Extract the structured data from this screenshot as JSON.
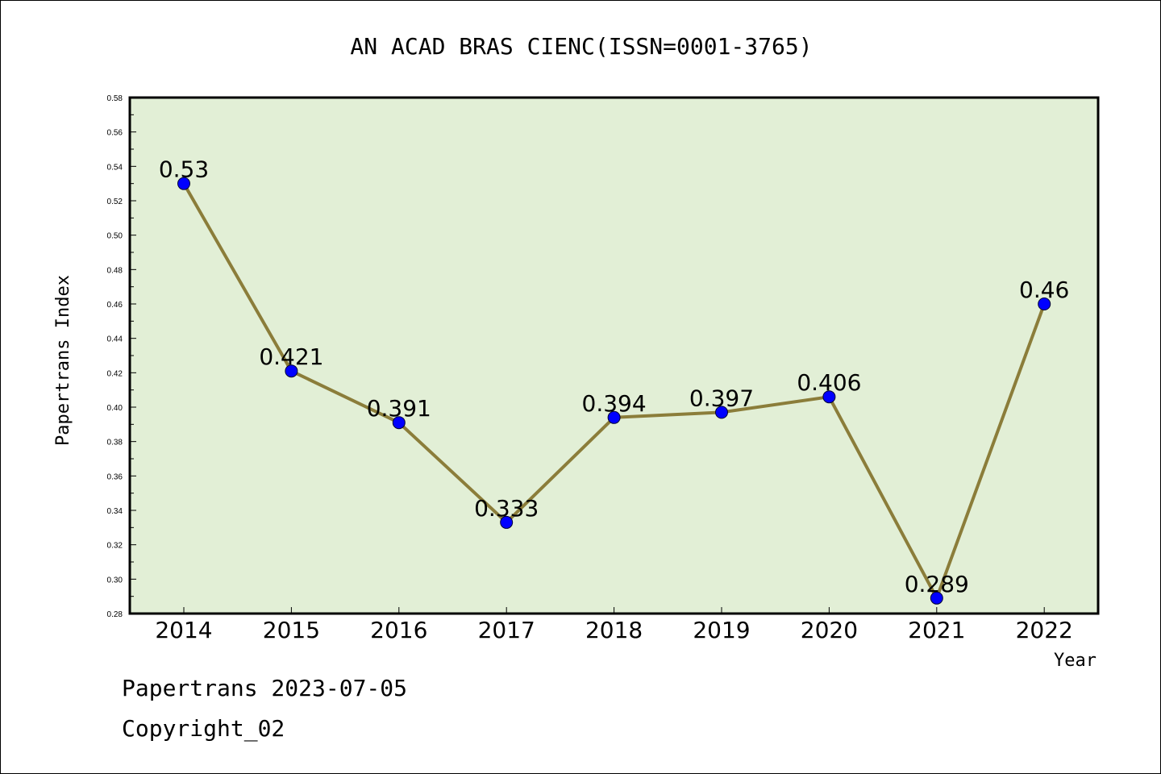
{
  "chart_data": {
    "type": "line",
    "title": "AN ACAD BRAS CIENC(ISSN=0001-3765)",
    "xlabel": "Year",
    "ylabel": "Papertrans Index",
    "categories": [
      "2014",
      "2015",
      "2016",
      "2017",
      "2018",
      "2019",
      "2020",
      "2021",
      "2022"
    ],
    "series": [
      {
        "values": [
          0.53,
          0.421,
          0.391,
          0.333,
          0.394,
          0.397,
          0.406,
          0.289,
          0.46
        ],
        "data_labels": [
          "0.53",
          "0.421",
          "0.391",
          "0.333",
          "0.394",
          "0.397",
          "0.406",
          "0.289",
          "0.46"
        ]
      }
    ],
    "ylim": [
      0.28,
      0.58
    ],
    "y_ticks": [
      "0.28",
      "0.30",
      "0.32",
      "0.34",
      "0.36",
      "0.38",
      "0.40",
      "0.42",
      "0.44",
      "0.46",
      "0.48",
      "0.50",
      "0.52",
      "0.54",
      "0.56",
      "0.58"
    ],
    "grid": false,
    "legend": "none",
    "colors": {
      "plot_background": "#e2efd6",
      "line": "#8b7d3a",
      "marker": "#0000ff",
      "axis": "#000000"
    }
  },
  "footer": {
    "date_text": "Papertrans 2023-07-05",
    "copyright_text": "Copyright_02"
  }
}
